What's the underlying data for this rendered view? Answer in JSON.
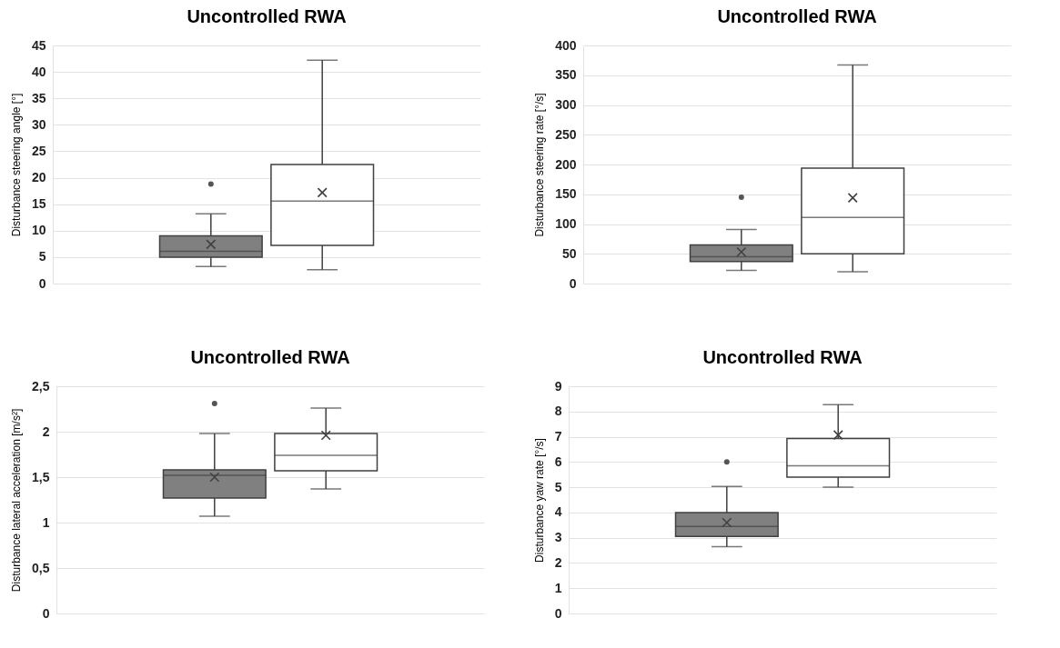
{
  "chart_data": [
    {
      "type": "box",
      "title": "Uncontrolled RWA",
      "ylabel": "Disturbance steering angle [°]",
      "categories": [
        null
      ],
      "tick_labels": "y",
      "grid": "y",
      "ylim": [
        0,
        45
      ],
      "yticks": [
        0,
        5,
        10,
        15,
        20,
        25,
        30,
        35,
        40,
        45
      ],
      "series": [
        {
          "color": "#808080",
          "boxes": [
            {
              "low": 3.2,
              "q1": 5,
              "median": 6.1,
              "q3": 9,
              "high": 13.2,
              "mean": 7.4,
              "outliers": [
                18.8
              ]
            }
          ]
        },
        {
          "color": "#ffffff",
          "boxes": [
            {
              "low": 2.6,
              "q1": 7.2,
              "median": 15.6,
              "q3": 22.5,
              "high": 42.2,
              "mean": 17.2
            }
          ]
        }
      ]
    },
    {
      "type": "box",
      "title": "Uncontrolled RWA",
      "ylabel": "Disturbance steering rate [°/s]",
      "categories": [
        null
      ],
      "tick_labels": "y",
      "grid": "y",
      "ylim": [
        0,
        400
      ],
      "yticks": [
        0,
        50,
        100,
        150,
        200,
        250,
        300,
        350,
        400
      ],
      "series": [
        {
          "color": "#808080",
          "boxes": [
            {
              "low": 22,
              "q1": 37,
              "median": 45,
              "q3": 65,
              "high": 91,
              "mean": 53,
              "outliers": [
                145
              ]
            }
          ]
        },
        {
          "color": "#ffffff",
          "boxes": [
            {
              "low": 20,
              "q1": 50,
              "median": 111,
              "q3": 194,
              "high": 367,
              "mean": 144
            }
          ]
        }
      ]
    },
    {
      "type": "box",
      "title": "Uncontrolled RWA",
      "ylabel": "Disturbance lateral acceleration [m/s²]",
      "categories": [
        null
      ],
      "tick_labels": "y",
      "grid": "y",
      "ylim": [
        0,
        2.5
      ],
      "yticks": [
        0,
        {
          "value": 0.5,
          "label": "0,5"
        },
        1,
        {
          "value": 1.5,
          "label": "1,5"
        },
        2,
        {
          "value": 2.5,
          "label": "2,5"
        }
      ],
      "series": [
        {
          "color": "#808080",
          "boxes": [
            {
              "low": 1.07,
              "q1": 1.27,
              "median": 1.52,
              "q3": 1.58,
              "high": 1.98,
              "mean": 1.5,
              "outliers": [
                2.31
              ]
            }
          ]
        },
        {
          "color": "#ffffff",
          "boxes": [
            {
              "low": 1.37,
              "q1": 1.57,
              "median": 1.74,
              "q3": 1.98,
              "high": 2.26,
              "mean": 1.96
            }
          ]
        }
      ]
    },
    {
      "type": "box",
      "title": "Uncontrolled RWA",
      "ylabel": "Disturbance yaw rate [°/s]",
      "categories": [
        null
      ],
      "tick_labels": "y",
      "grid": "y",
      "ylim": [
        0,
        9
      ],
      "yticks": [
        0,
        1,
        2,
        3,
        4,
        5,
        6,
        7,
        8,
        9
      ],
      "series": [
        {
          "color": "#808080",
          "boxes": [
            {
              "low": 2.65,
              "q1": 3.05,
              "median": 3.45,
              "q3": 4.0,
              "high": 5.03,
              "mean": 3.6,
              "outliers": [
                6.0
              ]
            }
          ]
        },
        {
          "color": "#ffffff",
          "boxes": [
            {
              "low": 5.0,
              "q1": 5.4,
              "median": 5.85,
              "q3": 6.93,
              "high": 8.27,
              "mean": 7.07
            }
          ]
        }
      ]
    }
  ]
}
